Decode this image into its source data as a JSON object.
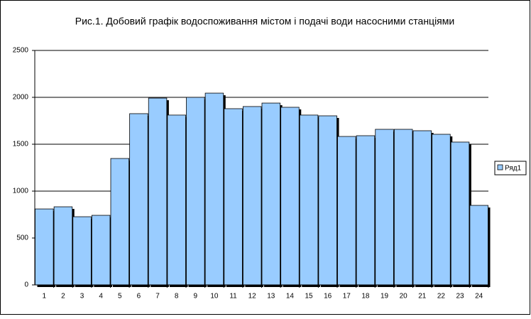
{
  "chart_data": {
    "type": "bar",
    "title": "Рис.1. Добовий графік водоспоживання містом і подачі води насосними станціями",
    "categories": [
      "1",
      "2",
      "3",
      "4",
      "5",
      "6",
      "7",
      "8",
      "9",
      "10",
      "11",
      "12",
      "13",
      "14",
      "15",
      "16",
      "17",
      "18",
      "19",
      "20",
      "21",
      "22",
      "23",
      "24"
    ],
    "series": [
      {
        "name": "Ряд1",
        "color": "#99ccff",
        "values": [
          810,
          833,
          727,
          742,
          1348,
          1826,
          1992,
          1811,
          2000,
          2045,
          1879,
          1902,
          1939,
          1894,
          1811,
          1803,
          1583,
          1591,
          1659,
          1659,
          1644,
          1606,
          1523,
          848
        ]
      }
    ],
    "ylim": [
      0,
      2500
    ],
    "yticks": [
      0,
      500,
      1000,
      1500,
      2000,
      2500
    ],
    "grid": true,
    "legend": "right"
  }
}
